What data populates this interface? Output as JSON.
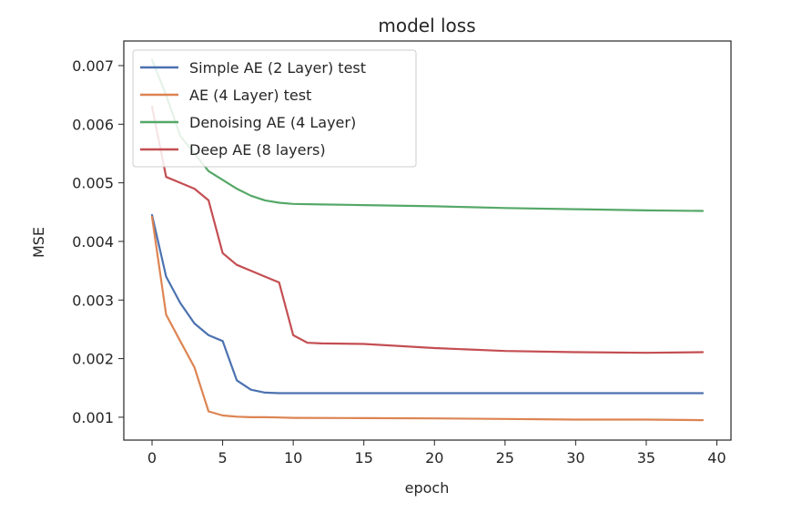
{
  "chart_data": {
    "type": "line",
    "title": "model loss",
    "xlabel": "epoch",
    "ylabel": "MSE",
    "xlim": [
      -2,
      41
    ],
    "ylim": [
      0.00061,
      0.00742
    ],
    "xticks": [
      0,
      5,
      10,
      15,
      20,
      25,
      30,
      35,
      40
    ],
    "xtick_labels": [
      "0",
      "5",
      "10",
      "15",
      "20",
      "25",
      "30",
      "35",
      "40"
    ],
    "yticks": [
      0.001,
      0.002,
      0.003,
      0.004,
      0.005,
      0.006,
      0.007
    ],
    "ytick_labels": [
      "0.001",
      "0.002",
      "0.003",
      "0.004",
      "0.005",
      "0.006",
      "0.007"
    ],
    "grid": false,
    "legend_position": "upper-left",
    "series": [
      {
        "name": "Simple AE (2 Layer) test",
        "color": "#4c72b0",
        "x": [
          0,
          1,
          2,
          3,
          4,
          5,
          6,
          7,
          8,
          9,
          10,
          15,
          20,
          25,
          30,
          35,
          39
        ],
        "values": [
          0.00445,
          0.0034,
          0.00295,
          0.0026,
          0.0024,
          0.0023,
          0.00163,
          0.00147,
          0.00142,
          0.00141,
          0.00141,
          0.00141,
          0.00141,
          0.00141,
          0.00141,
          0.00141,
          0.00141
        ]
      },
      {
        "name": "AE (4 Layer) test",
        "color": "#dd8452",
        "x": [
          0,
          1,
          2,
          3,
          4,
          5,
          6,
          7,
          8,
          9,
          10,
          15,
          20,
          25,
          30,
          35,
          39
        ],
        "values": [
          0.00442,
          0.00275,
          0.0023,
          0.00185,
          0.0011,
          0.00103,
          0.00101,
          0.001,
          0.001,
          0.000995,
          0.00099,
          0.000985,
          0.00098,
          0.00097,
          0.00096,
          0.00096,
          0.00095
        ]
      },
      {
        "name": "Denoising AE (4 Layer)",
        "color": "#55a868",
        "x": [
          0,
          1,
          2,
          3,
          4,
          5,
          6,
          7,
          8,
          9,
          10,
          12,
          15,
          20,
          25,
          30,
          35,
          39
        ],
        "values": [
          0.0071,
          0.0065,
          0.0058,
          0.0055,
          0.0052,
          0.00505,
          0.0049,
          0.00478,
          0.0047,
          0.00466,
          0.00464,
          0.00463,
          0.00462,
          0.0046,
          0.00457,
          0.00455,
          0.00453,
          0.00452
        ]
      },
      {
        "name": "Deep AE (8 layers)",
        "color": "#c44e52",
        "x": [
          0,
          1,
          2,
          3,
          4,
          5,
          6,
          7,
          8,
          9,
          10,
          11,
          12,
          15,
          20,
          25,
          30,
          35,
          39
        ],
        "values": [
          0.0063,
          0.0051,
          0.005,
          0.0049,
          0.0047,
          0.0038,
          0.0036,
          0.0035,
          0.0034,
          0.0033,
          0.0024,
          0.00227,
          0.00226,
          0.00225,
          0.00218,
          0.00213,
          0.00211,
          0.0021,
          0.00211
        ]
      }
    ]
  }
}
